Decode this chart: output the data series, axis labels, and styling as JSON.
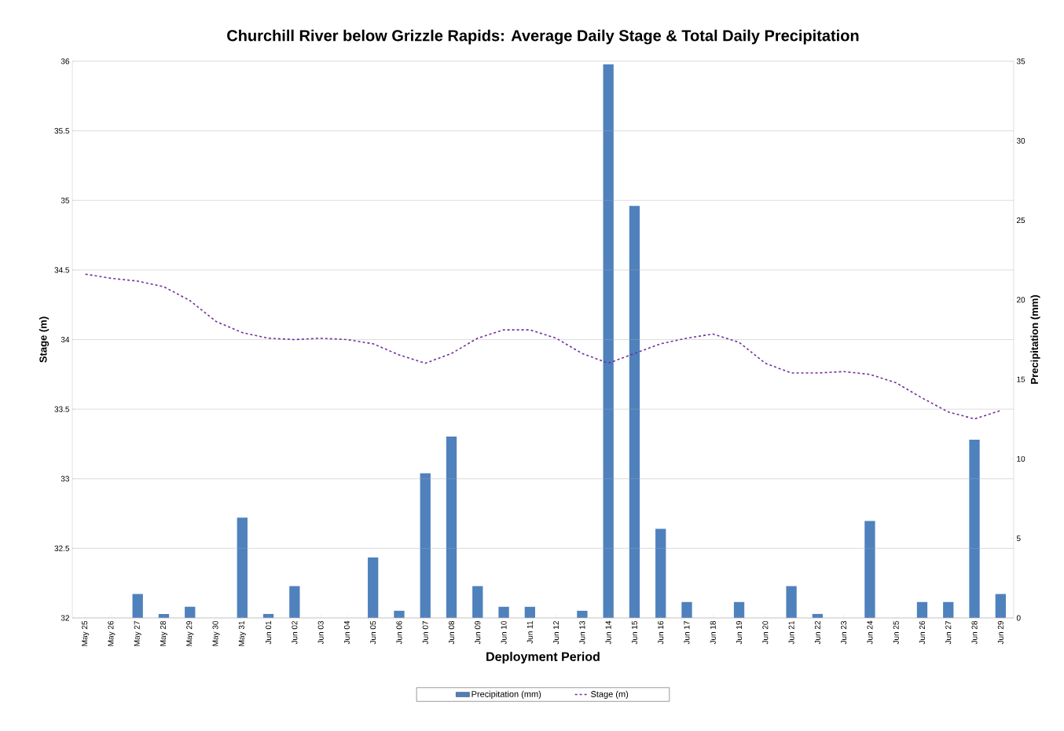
{
  "chart_data": {
    "type": "bar",
    "title": "Churchill River below Grizzle Rapids: Average Daily Stage & Total Daily Precipitation",
    "xlabel": "Deployment Period",
    "ylabel": "Stage (m)",
    "y2label": "Precipitation (mm)",
    "categories": [
      "May 25",
      "May 26",
      "May 27",
      "May 28",
      "May 29",
      "May 30",
      "May 31",
      "Jun 01",
      "Jun 02",
      "Jun 03",
      "Jun 04",
      "Jun 05",
      "Jun 06",
      "Jun 07",
      "Jun 08",
      "Jun 09",
      "Jun 10",
      "Jun 11",
      "Jun 12",
      "Jun 13",
      "Jun 14",
      "Jun 15",
      "Jun 16",
      "Jun 17",
      "Jun 18",
      "Jun 19",
      "Jun 20",
      "Jun 21",
      "Jun 22",
      "Jun 23",
      "Jun 24",
      "Jun 25",
      "Jun 26",
      "Jun 27",
      "Jun 28",
      "Jun 29"
    ],
    "series": [
      {
        "name": "Precipitation (mm)",
        "axis": "y2",
        "color": "#4f81bd",
        "values": [
          0,
          0,
          1.5,
          0.25,
          0.7,
          0,
          6.3,
          0.25,
          2.0,
          0,
          0,
          3.8,
          0.45,
          9.1,
          11.4,
          2.0,
          0.7,
          0.7,
          0,
          0.45,
          34.8,
          25.9,
          5.6,
          1.0,
          0,
          1.0,
          0,
          2.0,
          0.25,
          0,
          6.1,
          0,
          1.0,
          1.0,
          11.2,
          1.5
        ]
      },
      {
        "name": "Stage (m)",
        "type": "line",
        "line_style": "dashed",
        "color": "#7030a0",
        "values": [
          34.47,
          34.44,
          34.42,
          34.38,
          34.28,
          34.13,
          34.05,
          34.01,
          34.0,
          34.01,
          34.0,
          33.97,
          33.89,
          33.83,
          33.9,
          34.01,
          34.07,
          34.07,
          34.01,
          33.9,
          33.83,
          33.9,
          33.97,
          34.01,
          34.04,
          33.98,
          33.83,
          33.76,
          33.76,
          33.77,
          33.75,
          33.69,
          33.58,
          33.48,
          33.43,
          33.49
        ]
      }
    ],
    "ylim": [
      32,
      36
    ],
    "yticks": [
      32,
      32.5,
      33,
      33.5,
      34,
      34.5,
      35,
      35.5,
      36
    ],
    "y2lim": [
      0,
      35
    ],
    "y2ticks": [
      0,
      5,
      10,
      15,
      20,
      25,
      30,
      35
    ],
    "grid": "y",
    "legend": "bottom"
  }
}
